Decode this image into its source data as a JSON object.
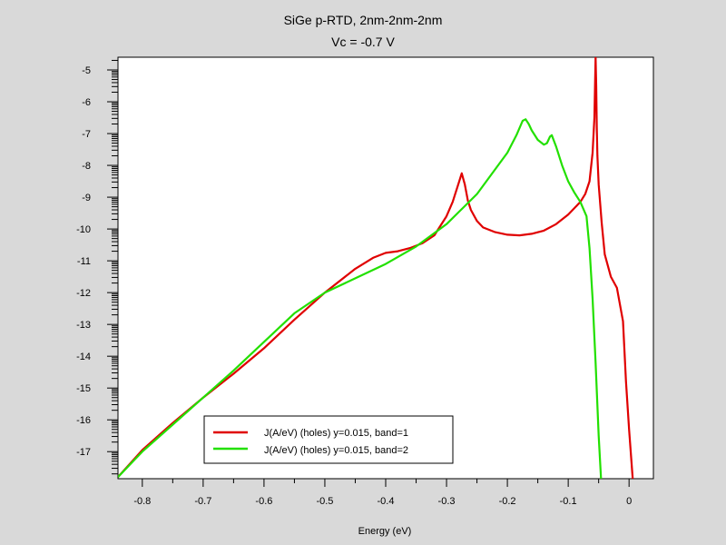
{
  "chart_data": {
    "type": "line",
    "title": "SiGe p-RTD, 2nm-2nm-2nm",
    "subtitle": "Vc = -0.7 V",
    "xlabel": "Energy (eV)",
    "ylabel": "",
    "xlim": [
      -0.84,
      0.04
    ],
    "ylim": [
      -17.85,
      -4.6
    ],
    "x_ticks": [
      -0.8,
      -0.7,
      -0.6,
      -0.5,
      -0.4,
      -0.3,
      -0.2,
      -0.1,
      0
    ],
    "x_tick_labels": [
      "-0.8",
      "-0.7",
      "-0.6",
      "-0.5",
      "-0.4",
      "-0.3",
      "-0.2",
      "-0.1",
      "0"
    ],
    "y_ticks": [
      -17,
      -16,
      -15,
      -14,
      -13,
      -12,
      -11,
      -10,
      -9,
      -8,
      -7,
      -6,
      -5
    ],
    "y_tick_labels": [
      "-17",
      "-16",
      "-15",
      "-14",
      "-13",
      "-12",
      "-11",
      "-10",
      "-9",
      "-8",
      "-7",
      "-6",
      "-5"
    ],
    "y_scale": "log (10^n, minor ticks)",
    "grid": false,
    "legend_position": "bottom-left",
    "series": [
      {
        "name": "J(A/eV) (holes) y=0.015, band=1",
        "color": "#e00000",
        "x": [
          -0.84,
          -0.8,
          -0.75,
          -0.7,
          -0.65,
          -0.6,
          -0.55,
          -0.5,
          -0.45,
          -0.42,
          -0.4,
          -0.38,
          -0.36,
          -0.34,
          -0.32,
          -0.3,
          -0.29,
          -0.28,
          -0.275,
          -0.27,
          -0.265,
          -0.26,
          -0.25,
          -0.24,
          -0.22,
          -0.2,
          -0.18,
          -0.16,
          -0.14,
          -0.12,
          -0.1,
          -0.08,
          -0.072,
          -0.065,
          -0.06,
          -0.057,
          -0.055,
          -0.054,
          -0.053,
          -0.052,
          -0.05,
          -0.045,
          -0.04,
          -0.03,
          -0.02,
          -0.01,
          -0.005,
          0,
          0.006
        ],
        "y": [
          -17.8,
          -16.95,
          -16.1,
          -15.3,
          -14.55,
          -13.75,
          -12.85,
          -12.0,
          -11.25,
          -10.9,
          -10.75,
          -10.7,
          -10.6,
          -10.45,
          -10.2,
          -9.6,
          -9.15,
          -8.55,
          -8.25,
          -8.6,
          -9.1,
          -9.4,
          -9.75,
          -9.95,
          -10.1,
          -10.18,
          -10.2,
          -10.15,
          -10.05,
          -9.85,
          -9.55,
          -9.15,
          -8.9,
          -8.5,
          -7.6,
          -6.5,
          -4.6,
          -5.5,
          -6.8,
          -7.7,
          -8.6,
          -9.8,
          -10.8,
          -11.5,
          -11.85,
          -12.9,
          -14.8,
          -16.3,
          -17.85
        ]
      },
      {
        "name": "J(A/eV) (holes) y=0.015, band=2",
        "color": "#22e000",
        "x": [
          -0.84,
          -0.8,
          -0.75,
          -0.7,
          -0.65,
          -0.6,
          -0.55,
          -0.5,
          -0.45,
          -0.4,
          -0.35,
          -0.3,
          -0.25,
          -0.2,
          -0.185,
          -0.175,
          -0.17,
          -0.165,
          -0.16,
          -0.15,
          -0.14,
          -0.135,
          -0.13,
          -0.127,
          -0.12,
          -0.11,
          -0.1,
          -0.09,
          -0.08,
          -0.07,
          -0.065,
          -0.06,
          -0.055,
          -0.05,
          -0.046
        ],
        "y": [
          -17.8,
          -17.0,
          -16.15,
          -15.3,
          -14.45,
          -13.55,
          -12.65,
          -12.0,
          -11.55,
          -11.1,
          -10.55,
          -9.85,
          -8.9,
          -7.6,
          -7.05,
          -6.6,
          -6.55,
          -6.7,
          -6.9,
          -7.2,
          -7.35,
          -7.3,
          -7.1,
          -7.05,
          -7.4,
          -8.0,
          -8.5,
          -8.85,
          -9.15,
          -9.6,
          -10.6,
          -12.2,
          -14.2,
          -16.5,
          -17.85
        ]
      }
    ]
  }
}
